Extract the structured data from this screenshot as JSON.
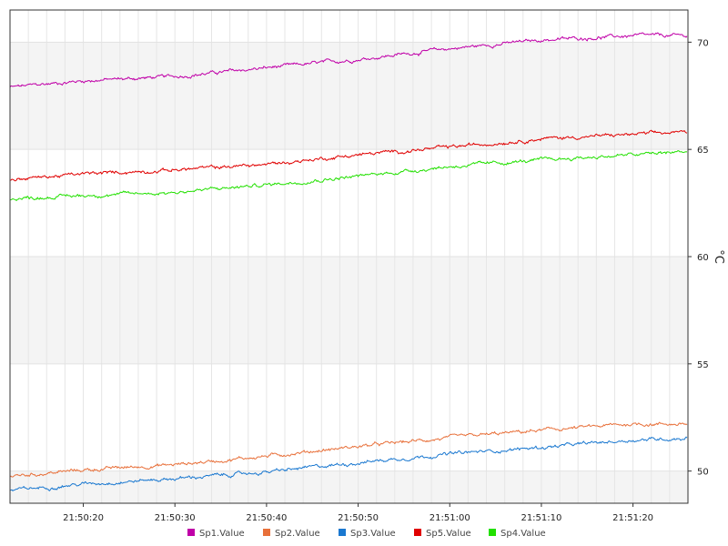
{
  "chart_data": {
    "type": "line",
    "title": "",
    "xlabel": "",
    "ylabel": "°C",
    "ylim": [
      48.5,
      71.5
    ],
    "xlim": [
      "21:50:12",
      "21:51:26"
    ],
    "grid": true,
    "legend_position": "bottom",
    "x_ticks": [
      "21:50:20",
      "21:50:30",
      "21:50:40",
      "21:50:50",
      "21:51:00",
      "21:51:10",
      "21:51:20"
    ],
    "y_ticks": [
      50,
      55,
      60,
      65,
      70
    ],
    "x": [
      "21:50:12",
      "21:50:20",
      "21:50:30",
      "21:50:40",
      "21:50:50",
      "21:51:00",
      "21:51:10",
      "21:51:20",
      "21:51:26"
    ],
    "series": [
      {
        "name": "Sp1.Value",
        "color": "#C000A8",
        "values": [
          67.9,
          68.2,
          68.4,
          68.8,
          69.2,
          69.7,
          70.1,
          70.3,
          70.3
        ]
      },
      {
        "name": "Sp2.Value",
        "color": "#E8703A",
        "values": [
          49.75,
          50.05,
          50.3,
          50.7,
          51.15,
          51.55,
          51.9,
          52.2,
          52.2
        ]
      },
      {
        "name": "Sp3.Value",
        "color": "#1A78D0",
        "values": [
          49.1,
          49.4,
          49.65,
          49.95,
          50.4,
          50.8,
          51.1,
          51.45,
          51.55
        ]
      },
      {
        "name": "Sp5.Value",
        "color": "#E00000",
        "values": [
          63.6,
          63.85,
          64.05,
          64.3,
          64.75,
          65.1,
          65.5,
          65.7,
          65.8
        ]
      },
      {
        "name": "Sp4.Value",
        "color": "#22E000",
        "values": [
          62.7,
          62.85,
          63.0,
          63.35,
          63.75,
          64.2,
          64.5,
          64.75,
          64.9
        ]
      }
    ]
  }
}
